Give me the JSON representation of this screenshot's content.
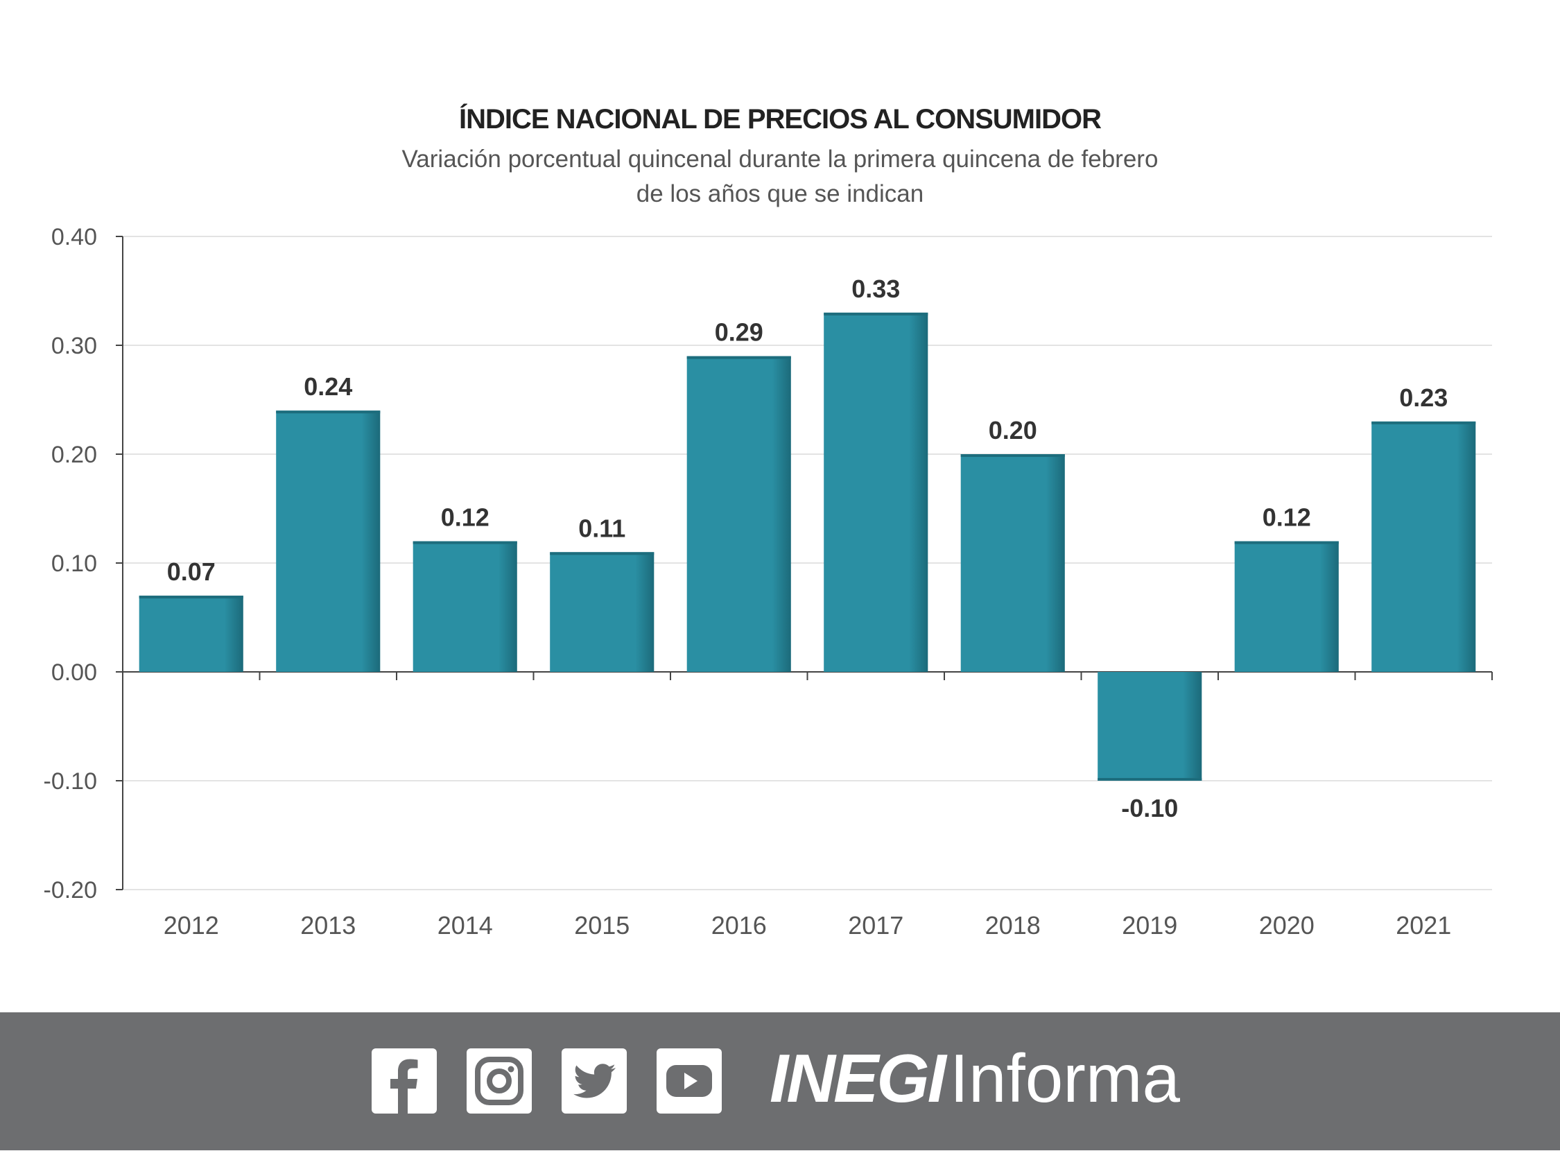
{
  "chart_data": {
    "type": "bar",
    "title": "ÍNDICE NACIONAL DE PRECIOS AL CONSUMIDOR",
    "subtitle": "Variación porcentual quincenal durante la primera quincena de febrero de los años que se indican",
    "xlabel": "",
    "ylabel": "",
    "categories": [
      "2012",
      "2013",
      "2014",
      "2015",
      "2016",
      "2017",
      "2018",
      "2019",
      "2020",
      "2021"
    ],
    "values": [
      0.07,
      0.24,
      0.12,
      0.11,
      0.29,
      0.33,
      0.2,
      -0.1,
      0.12,
      0.23
    ],
    "data_labels": [
      "0.07",
      "0.24",
      "0.12",
      "0.11",
      "0.29",
      "0.33",
      "0.20",
      "-0.10",
      "0.12",
      "0.23"
    ],
    "ylim": [
      -0.2,
      0.4
    ],
    "yticks": [
      0.4,
      0.3,
      0.2,
      0.1,
      0.0,
      -0.1,
      -0.2
    ],
    "ytick_labels": [
      "0.40",
      "0.30",
      "0.20",
      "0.10",
      "0.00",
      "-0.10",
      "-0.20"
    ],
    "grid": true,
    "legend": "none",
    "bar_color": "#2a8fa3"
  },
  "footer": {
    "background": "#6d6e70",
    "social_icons": [
      "facebook-icon",
      "instagram-icon",
      "twitter-icon",
      "youtube-icon"
    ],
    "brand_bold": "INEGI",
    "brand_light": "Informa"
  }
}
